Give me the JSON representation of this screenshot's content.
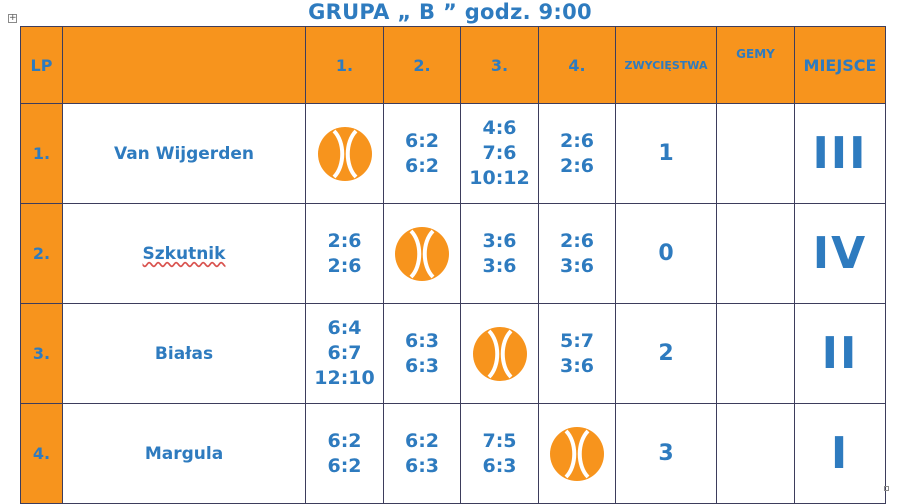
{
  "title": "GRUPA „ B ” godz. 9:00",
  "headers": {
    "lp": "LP",
    "blank": "",
    "c1": "1.",
    "c2": "2.",
    "c3": "3.",
    "c4": "4.",
    "wins": "ZWYCIĘSTWA",
    "games": "GEMY",
    "place": "MIEJSCE"
  },
  "rows": [
    {
      "lp": "1.",
      "name": "Van Wijgerden",
      "scores": [
        "",
        [
          "6:2",
          "6:2"
        ],
        [
          "4:6",
          "7:6",
          "10:12"
        ],
        [
          "2:6",
          "2:6"
        ]
      ],
      "wins": "1",
      "games": "",
      "place": "III"
    },
    {
      "lp": "2.",
      "name": "Szkutnik",
      "scores": [
        [
          "2:6",
          "2:6"
        ],
        "",
        [
          "3:6",
          "3:6"
        ],
        [
          "2:6",
          "3:6"
        ]
      ],
      "wins": "0",
      "games": "",
      "place": "IV"
    },
    {
      "lp": "3.",
      "name": "Białas",
      "scores": [
        [
          "6:4",
          "6:7",
          "12:10"
        ],
        [
          "6:3",
          "6:3"
        ],
        "",
        [
          "5:7",
          "3:6"
        ]
      ],
      "wins": "2",
      "games": "",
      "place": "II"
    },
    {
      "lp": "4.",
      "name": "Margula",
      "scores": [
        [
          "6:2",
          "6:2"
        ],
        [
          "6:2",
          "6:3"
        ],
        [
          "7:5",
          "6:3"
        ],
        ""
      ],
      "wins": "3",
      "games": "",
      "place": "I"
    }
  ],
  "ball_icon": "tennis-ball-icon",
  "colors": {
    "header_bg": "#f7941d",
    "text": "#2e7bbf",
    "border": "#3d3d5c",
    "ball": "#f7941d"
  }
}
